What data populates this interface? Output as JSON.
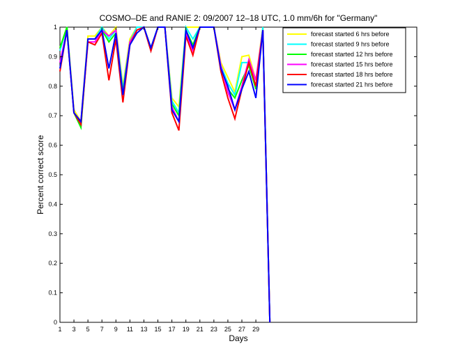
{
  "chart_data": {
    "type": "line",
    "title": "COSMO–DE and RANIE 2: 09/2007 12–18 UTC, 1.0 mm/6h for \"Germany\"",
    "xlabel": "Days",
    "ylabel": "Percent correct score",
    "xlim": [
      1,
      52
    ],
    "ylim": [
      0,
      1
    ],
    "xticks": [
      1,
      3,
      5,
      7,
      9,
      11,
      13,
      15,
      17,
      19,
      21,
      23,
      25,
      27,
      29
    ],
    "yticks": [
      0,
      0.1,
      0.2,
      0.3,
      0.4,
      0.5,
      0.6,
      0.7,
      0.8,
      0.9,
      1
    ],
    "ytick_labels": [
      "0",
      "0.1",
      "0.2",
      "0.3",
      "0.4",
      "0.5",
      "0.6",
      "0.7",
      "0.8",
      "0.9",
      "1"
    ],
    "legend_position": "top-right",
    "x": [
      1,
      2,
      3,
      4,
      5,
      6,
      7,
      8,
      9,
      10,
      11,
      12,
      13,
      14,
      15,
      16,
      17,
      18,
      19,
      20,
      21,
      22,
      23,
      24,
      25,
      26,
      27,
      28,
      29,
      30,
      31
    ],
    "series": [
      {
        "name": "forecast started 6 hrs before",
        "color": "#ffff00",
        "values": [
          0.93,
          1.0,
          0.72,
          0.68,
          0.97,
          0.97,
          1.0,
          0.97,
          1.0,
          0.8,
          0.96,
          1.0,
          1.0,
          0.93,
          1.0,
          1.0,
          0.76,
          0.73,
          1.0,
          1.0,
          1.0,
          1.0,
          1.0,
          0.88,
          0.83,
          0.78,
          0.9,
          0.905,
          0.82,
          1.0,
          0.0
        ]
      },
      {
        "name": "forecast started 9 hrs before",
        "color": "#00ffff",
        "values": [
          0.92,
          1.0,
          0.71,
          0.67,
          0.96,
          0.96,
          1.0,
          0.96,
          0.99,
          0.79,
          0.95,
          1.0,
          1.0,
          0.93,
          1.0,
          1.0,
          0.75,
          0.71,
          1.0,
          0.96,
          1.0,
          1.0,
          1.0,
          0.87,
          0.81,
          0.77,
          0.88,
          0.88,
          0.8,
          1.0,
          0.0
        ]
      },
      {
        "name": "forecast started 12 hrs before",
        "color": "#00ff00",
        "values": [
          0.93,
          1.0,
          0.71,
          0.66,
          0.96,
          0.96,
          0.99,
          0.95,
          0.98,
          0.78,
          0.95,
          0.99,
          1.0,
          0.92,
          1.0,
          1.0,
          0.74,
          0.7,
          0.99,
          0.94,
          1.0,
          1.0,
          1.0,
          0.86,
          0.79,
          0.76,
          0.82,
          0.87,
          0.79,
          0.99,
          0.0
        ]
      },
      {
        "name": "forecast started 15 hrs before",
        "color": "#ff00ff",
        "values": [
          0.88,
          0.99,
          0.71,
          0.68,
          0.95,
          0.95,
          0.99,
          0.97,
          0.99,
          0.77,
          0.95,
          0.99,
          1.0,
          0.92,
          1.0,
          1.0,
          0.73,
          0.68,
          0.98,
          0.92,
          1.0,
          1.0,
          1.0,
          0.87,
          0.78,
          0.72,
          0.8,
          0.89,
          0.82,
          0.99,
          0.0
        ]
      },
      {
        "name": "forecast started 18 hrs before",
        "color": "#ff0000",
        "values": [
          0.85,
          0.99,
          0.71,
          0.67,
          0.95,
          0.94,
          0.98,
          0.82,
          0.96,
          0.745,
          0.94,
          0.99,
          1.0,
          0.92,
          1.0,
          1.0,
          0.71,
          0.65,
          0.97,
          0.905,
          1.0,
          1.0,
          1.0,
          0.85,
          0.76,
          0.69,
          0.79,
          0.88,
          0.8,
          0.99,
          0.0
        ]
      },
      {
        "name": "forecast started 21 hrs before",
        "color": "#0000ff",
        "values": [
          0.86,
          0.99,
          0.71,
          0.68,
          0.96,
          0.96,
          0.99,
          0.86,
          0.98,
          0.77,
          0.94,
          0.98,
          1.0,
          0.93,
          1.0,
          1.0,
          0.72,
          0.68,
          0.99,
          0.93,
          1.0,
          1.0,
          1.0,
          0.86,
          0.8,
          0.72,
          0.79,
          0.85,
          0.76,
          0.99,
          0.0
        ]
      }
    ]
  }
}
